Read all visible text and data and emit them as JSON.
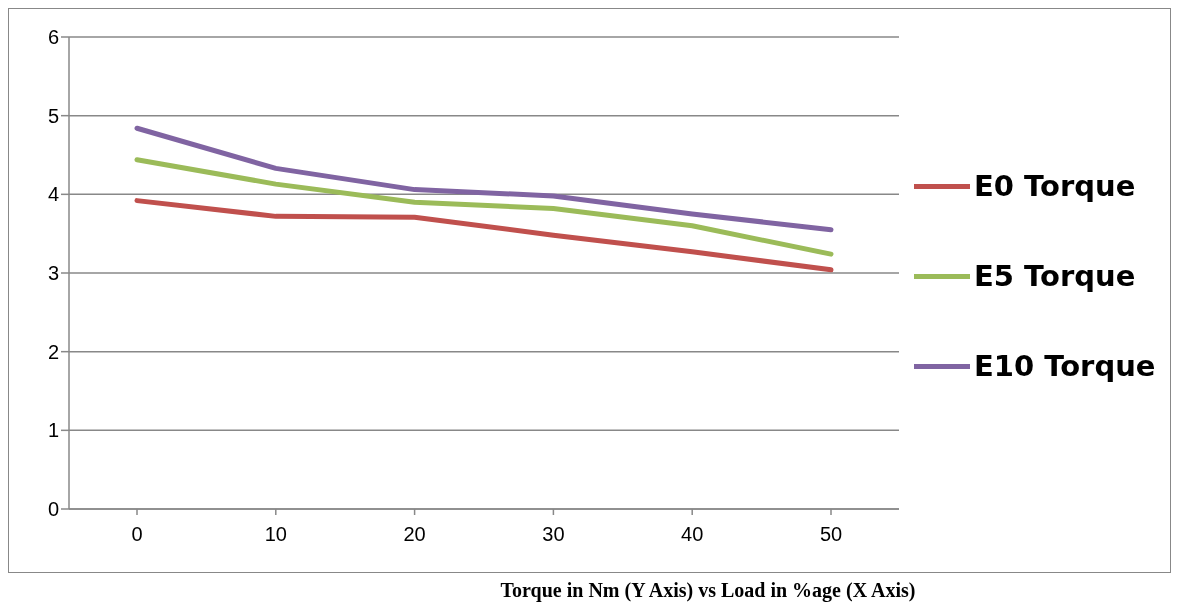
{
  "chart_data": {
    "type": "line",
    "title": "Torque in Nm (Y Axis) vs Load in %age (X Axis)",
    "categories": [
      "0",
      "10",
      "20",
      "30",
      "40",
      "50"
    ],
    "series": [
      {
        "name": "E0 Torque",
        "color": "#c0504d",
        "values": [
          3.92,
          3.72,
          3.71,
          3.48,
          3.27,
          3.04
        ]
      },
      {
        "name": "E5 Torque",
        "color": "#9bbb59",
        "values": [
          4.44,
          4.13,
          3.9,
          3.82,
          3.6,
          3.24
        ]
      },
      {
        "name": "E10 Torque",
        "color": "#8064a2",
        "values": [
          4.84,
          4.33,
          4.06,
          3.98,
          3.75,
          3.55
        ]
      }
    ],
    "ylim": [
      0,
      6
    ],
    "yticks": [
      0,
      1,
      2,
      3,
      4,
      5,
      6
    ],
    "grid": "y",
    "legend": "right",
    "marker": "none",
    "line_style": "solid"
  }
}
